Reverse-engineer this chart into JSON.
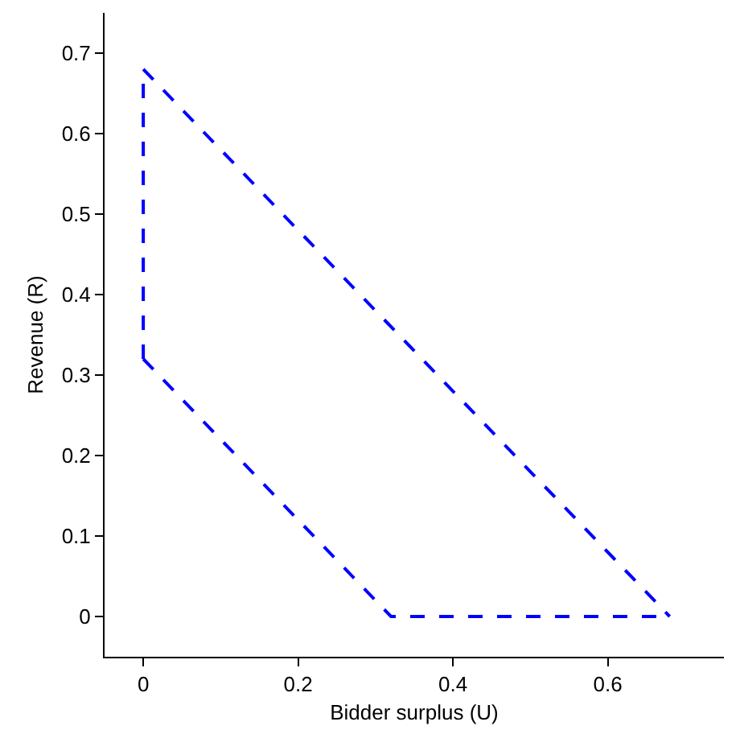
{
  "chart_data": {
    "type": "line",
    "xlabel": "Bidder surplus (U)",
    "ylabel": "Revenue (R)",
    "series": [
      {
        "color": "#0000ff",
        "x": [
          0,
          0.68
        ],
        "values": [
          0.68,
          0
        ]
      },
      {
        "color": "#0000ff",
        "x": [
          0,
          0.32,
          0.68
        ],
        "values": [
          0.32,
          0,
          0
        ]
      },
      {
        "color": "#0000ff",
        "x": [
          0,
          0
        ],
        "values": [
          0.32,
          0.68
        ]
      }
    ],
    "xlim": [
      -0.05,
      0.75
    ],
    "ylim": [
      -0.05,
      0.75
    ],
    "xticks": [
      0,
      0.2,
      0.4,
      0.6
    ],
    "yticks": [
      0,
      0.1,
      0.2,
      0.3,
      0.4,
      0.5,
      0.6,
      0.7
    ],
    "grid": false,
    "line_style": "dashed",
    "marker": "none"
  }
}
